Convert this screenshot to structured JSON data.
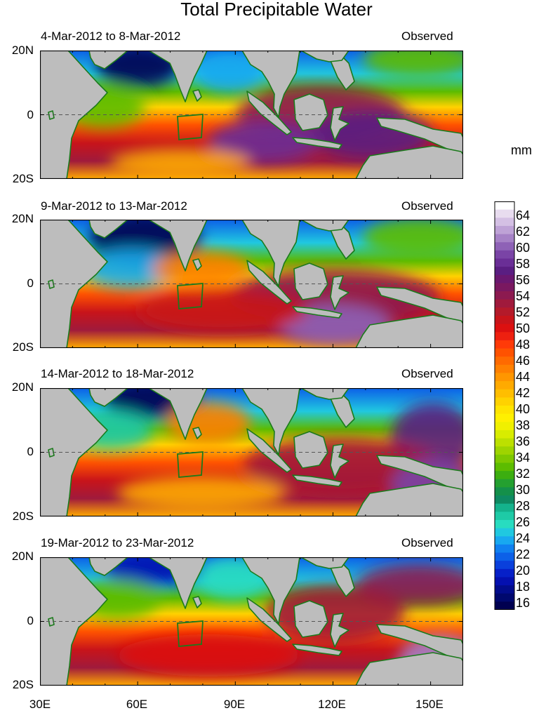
{
  "title": "Total Precipitable Water",
  "units": "mm",
  "panels": [
    {
      "period": "4-Mar-2012 to 8-Mar-2012",
      "tag": "Observed"
    },
    {
      "period": "9-Mar-2012 to 13-Mar-2012",
      "tag": "Observed"
    },
    {
      "period": "14-Mar-2012 to 18-Mar-2012",
      "tag": "Observed"
    },
    {
      "period": "19-Mar-2012 to 23-Mar-2012",
      "tag": "Observed"
    }
  ],
  "lat_labels": [
    "20N",
    "0",
    "20S"
  ],
  "lon_labels": [
    "30E",
    "60E",
    "90E",
    "120E",
    "150E"
  ],
  "colorbar": {
    "labels": [
      "64",
      "62",
      "60",
      "58",
      "56",
      "54",
      "52",
      "50",
      "48",
      "46",
      "44",
      "42",
      "40",
      "38",
      "36",
      "34",
      "32",
      "30",
      "28",
      "26",
      "24",
      "22",
      "20",
      "18",
      "16"
    ],
    "colors": [
      "#ffffff",
      "#e8dcef",
      "#d4c0e4",
      "#bea2d6",
      "#a682c6",
      "#8e62b6",
      "#7a44a6",
      "#6a2e96",
      "#5a1e82",
      "#6a1870",
      "#7a1860",
      "#8c1a50",
      "#a01a3c",
      "#b41a2a",
      "#c8141a",
      "#dc1010",
      "#ee2010",
      "#ff3a08",
      "#ff5200",
      "#ff6a00",
      "#ff8000",
      "#ff9600",
      "#ffaa00",
      "#ffbe00",
      "#ffd200",
      "#ffe400",
      "#fff000",
      "#f0f000",
      "#d8ec00",
      "#bce000",
      "#9ed400",
      "#7ec800",
      "#5cbc00",
      "#3cae10",
      "#24a030",
      "#14904a",
      "#0e8a62",
      "#14b28c",
      "#1ecaa6",
      "#28dcc0",
      "#20c8e0",
      "#18a8f0",
      "#1080f0",
      "#0c60e8",
      "#0a40dc",
      "#0620c8",
      "#0410b0",
      "#020c8c",
      "#00086e",
      "#000050"
    ],
    "range": [
      15,
      65
    ]
  }
}
